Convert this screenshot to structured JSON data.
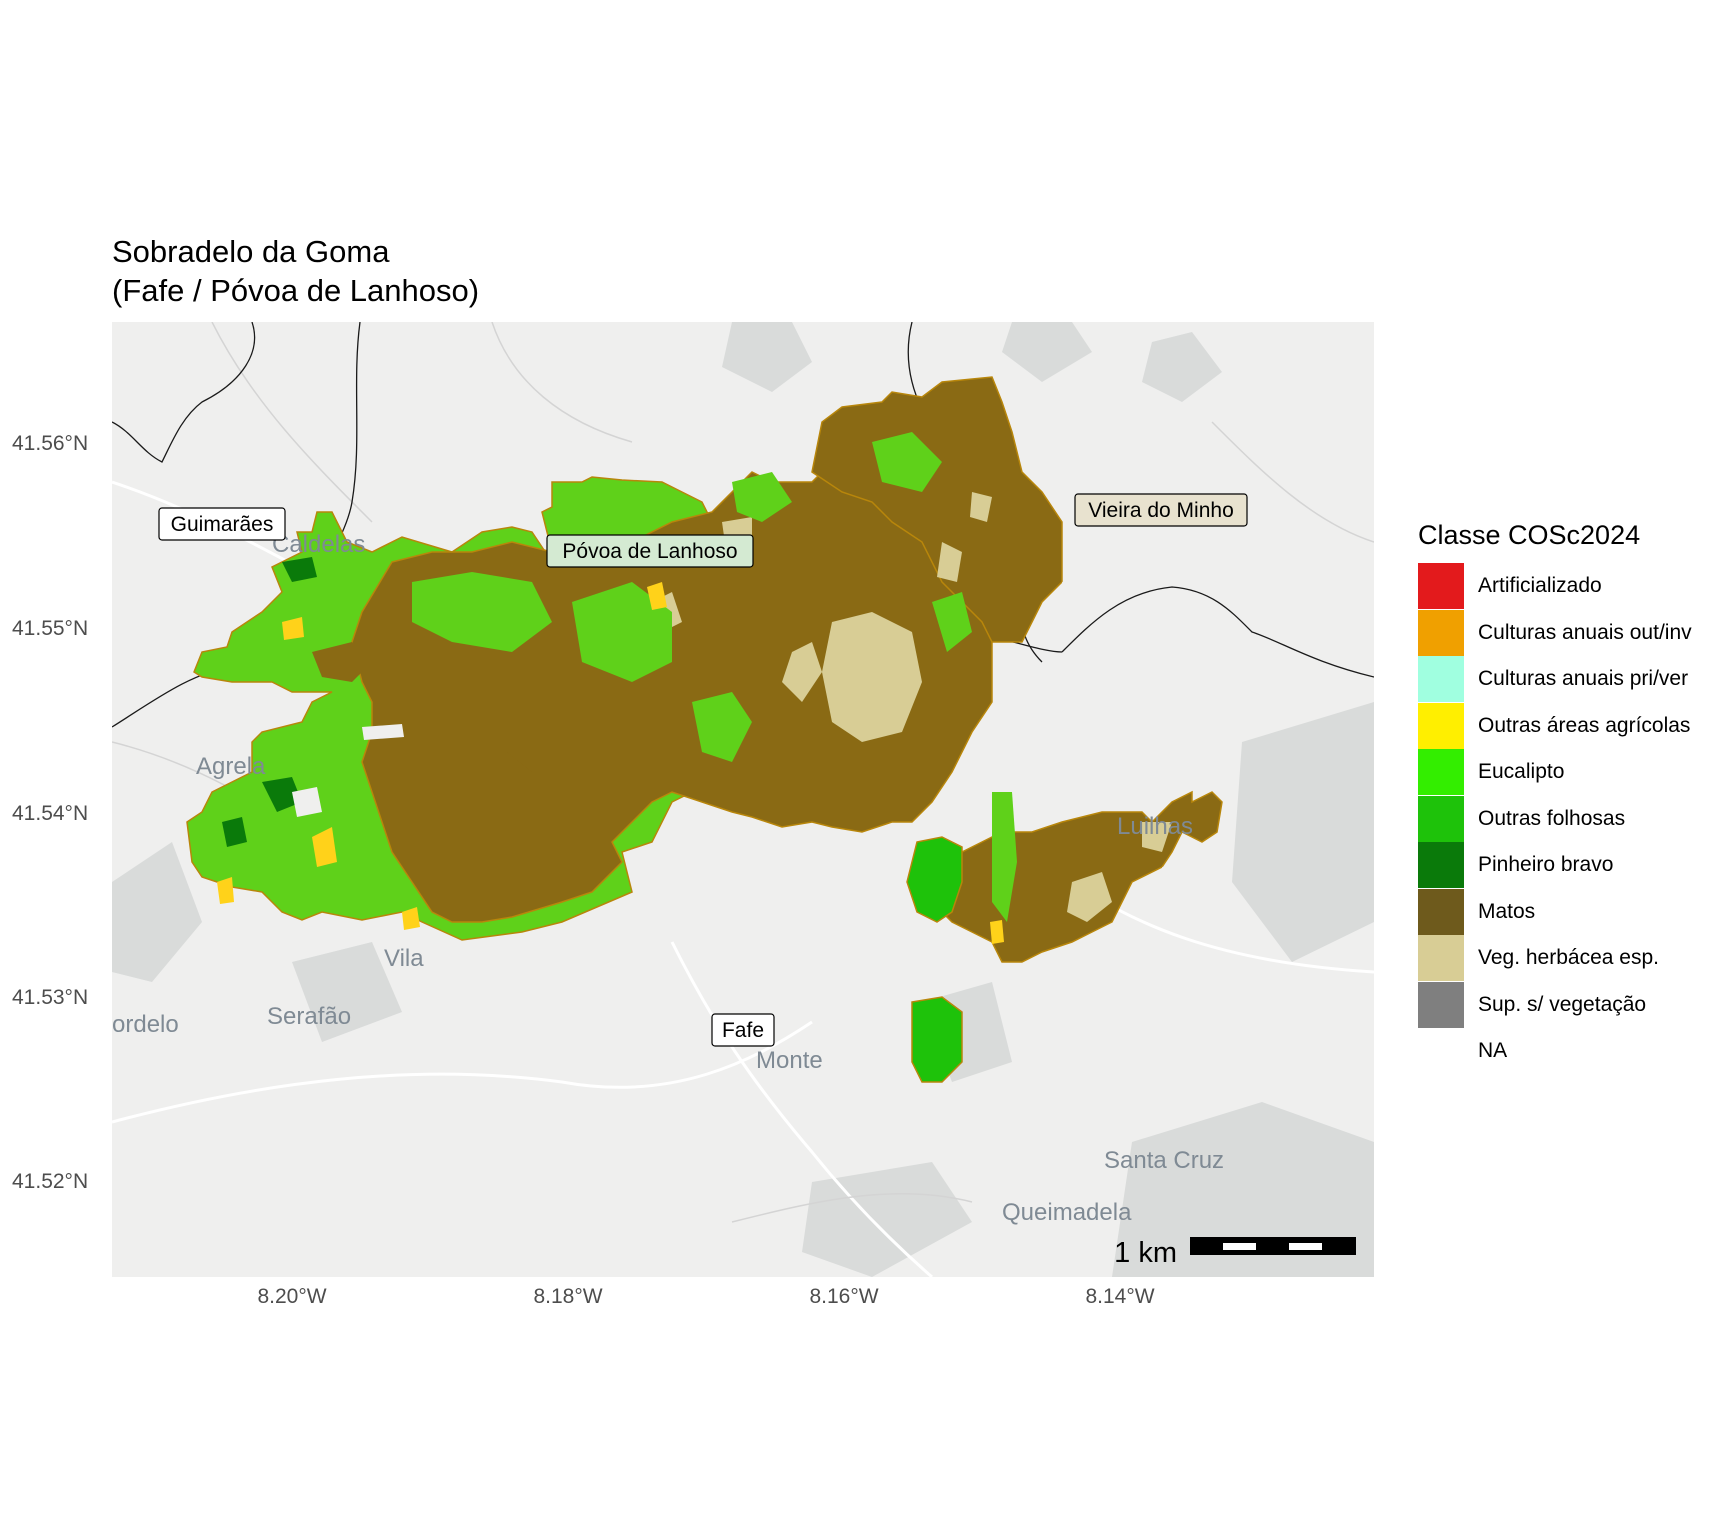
{
  "title_line1": "Sobradelo da Goma",
  "title_line2": "(Fafe / Póvoa de Lanhoso)",
  "y_ticks": [
    "41.56°N",
    "41.55°N",
    "41.54°N",
    "41.53°N",
    "41.52°N"
  ],
  "x_ticks": [
    "8.20°W",
    "8.18°W",
    "8.16°W",
    "8.14°W"
  ],
  "place_labels": [
    "Guimarães",
    "Póvoa de Lanhoso",
    "Vieira do Minho",
    "Fafe"
  ],
  "basemap_labels": [
    "Caldelas",
    "Agrela",
    "Serafão",
    "ordelo",
    "Monte",
    "Luilhas",
    "Santa Cruz",
    "Queimadela",
    "Vila"
  ],
  "scale_bar": {
    "label": "1 km"
  },
  "legend": {
    "title": "Classe COSc2024",
    "items": [
      {
        "label": "Artificializado",
        "color": "#e31a1c"
      },
      {
        "label": "Culturas anuais out/inv",
        "color": "#f0a000"
      },
      {
        "label": "Culturas anuais pri/ver",
        "color": "#a0ffe0"
      },
      {
        "label": "Outras áreas agrícolas",
        "color": "#ffef00"
      },
      {
        "label": "Eucalipto",
        "color": "#33ee00"
      },
      {
        "label": "Outras folhosas",
        "color": "#1ec20a"
      },
      {
        "label": "Pinheiro bravo",
        "color": "#0a7a0a"
      },
      {
        "label": "Matos",
        "color": "#6e5a1c"
      },
      {
        "label": "Veg. herbácea esp.",
        "color": "#d8cd95"
      },
      {
        "label": "Sup. s/ vegetação",
        "color": "#7f7f7f"
      },
      {
        "label": "NA",
        "color": "#ffffff"
      }
    ]
  },
  "map_colors": {
    "background": "#efefee",
    "matos_fill": "#8a6a14",
    "green_fill": "#5fd11a"
  }
}
